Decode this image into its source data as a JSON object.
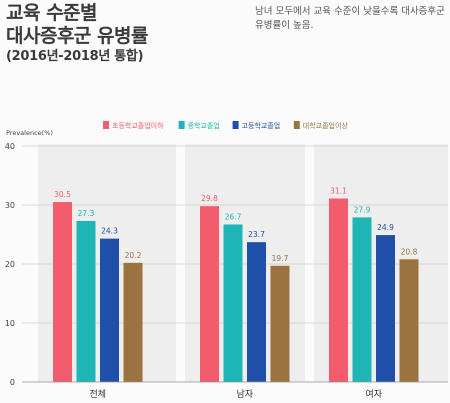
{
  "title": {
    "line1": "교육 수준별",
    "line2": "대사증후군 유병률",
    "line3": "(2016년-2018년 통합)"
  },
  "note": "남녀 모두에서 교육 수준이 낮을수록 대사증후군 유병률이 높음.",
  "colors": {
    "text": "#333333",
    "grid": "#cfcfcf",
    "panel": "#eeeeee"
  },
  "chart_data": {
    "type": "bar",
    "ylabel": "Prevalence(%)",
    "ylim": [
      0,
      40
    ],
    "yticks": [
      0,
      10,
      20,
      30,
      40
    ],
    "grid": true,
    "legend_position": "top",
    "categories": [
      "전체",
      "남자",
      "여자"
    ],
    "series": [
      {
        "name": "초등학교졸업이하",
        "color": "#f25c6c",
        "values": [
          30.5,
          29.8,
          31.1
        ]
      },
      {
        "name": "중학교졸업",
        "color": "#1db5b5",
        "values": [
          27.3,
          26.7,
          27.9
        ]
      },
      {
        "name": "고등학교졸업",
        "color": "#1f4fa8",
        "values": [
          24.3,
          23.7,
          24.9
        ]
      },
      {
        "name": "대학교졸업이상",
        "color": "#9a7340",
        "values": [
          20.2,
          19.7,
          20.8
        ]
      }
    ]
  }
}
